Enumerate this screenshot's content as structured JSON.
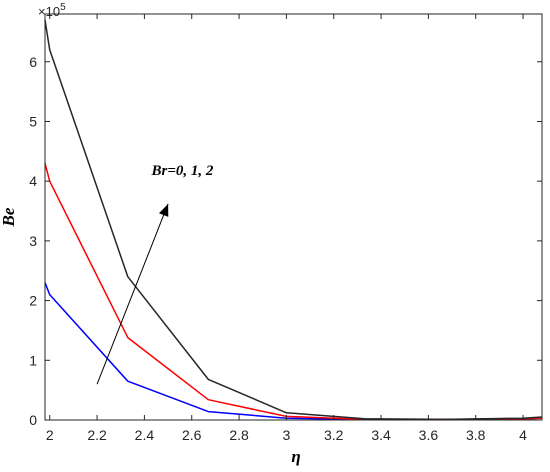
{
  "chart_data": {
    "type": "line",
    "xlabel": "η",
    "ylabel": "Be",
    "xlim": [
      1.98,
      4.08
    ],
    "ylim": [
      0,
      6.8
    ],
    "y_scale_label": "×10",
    "y_scale_exponent": "5",
    "xticks": [
      2,
      2.2,
      2.4,
      2.6,
      2.8,
      3,
      3.2,
      3.4,
      3.6,
      3.8,
      4
    ],
    "xtick_labels": [
      "2",
      "2.2",
      "2.4",
      "2.6",
      "2.8",
      "3",
      "3.2",
      "3.4",
      "3.6",
      "3.8",
      "4"
    ],
    "yticks": [
      0,
      1,
      2,
      3,
      4,
      5,
      6
    ],
    "ytick_labels": [
      "0",
      "1",
      "2",
      "3",
      "4",
      "5",
      "6"
    ],
    "grid": false,
    "series": [
      {
        "color": "#0000ff",
        "x": [
          1.98,
          2.0,
          2.33,
          2.67,
          3.0,
          3.33,
          3.67,
          4.0,
          4.08
        ],
        "y": [
          2.3,
          2.1,
          0.65,
          0.14,
          0.03,
          0.01,
          0.01,
          0.02,
          0.03
        ]
      },
      {
        "color": "#ff0000",
        "x": [
          1.98,
          2.0,
          2.33,
          2.67,
          3.0,
          3.33,
          3.67,
          4.0,
          4.08
        ],
        "y": [
          4.3,
          4.0,
          1.38,
          0.34,
          0.06,
          0.01,
          0.01,
          0.02,
          0.03
        ]
      },
      {
        "color": "#262626",
        "x": [
          1.98,
          2.0,
          2.33,
          2.67,
          3.0,
          3.33,
          3.67,
          4.0,
          4.08
        ],
        "y": [
          6.7,
          6.2,
          2.4,
          0.68,
          0.12,
          0.02,
          0.01,
          0.03,
          0.05
        ]
      }
    ],
    "annotation": {
      "text": "Br=0, 1, 2",
      "arrow_from": [
        2.2,
        0.6
      ],
      "arrow_to": [
        2.5,
        3.62
      ],
      "text_at": [
        2.43,
        4.1
      ]
    }
  }
}
